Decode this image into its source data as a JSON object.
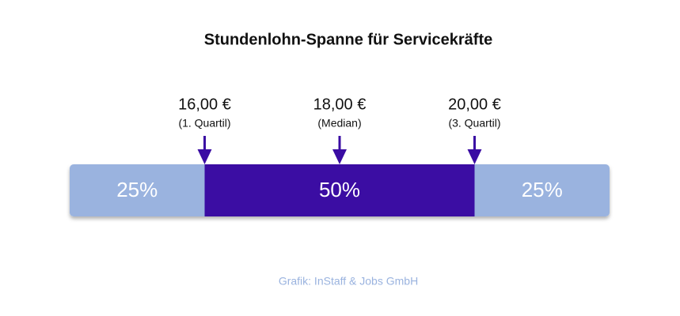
{
  "chart_data": {
    "type": "stacked-range",
    "title": "Stundenlohn-Spanne für Servicekräfte",
    "values": [
      25,
      50,
      25
    ],
    "value_labels": [
      "25%",
      "50%",
      "25%"
    ],
    "colors": [
      "#9ab3df",
      "#3a0ca3",
      "#9ab3df"
    ],
    "markers": [
      {
        "value": 16,
        "label": "16,00 €",
        "note": "(1. Quartil)"
      },
      {
        "value": 18,
        "label": "18,00 €",
        "note": "(Median)"
      },
      {
        "value": 20,
        "label": "20,00 €",
        "note": "(3. Quartil)"
      }
    ],
    "marker_color": "#3a0ca3",
    "source": "Grafik: InStaff & Jobs GmbH"
  }
}
